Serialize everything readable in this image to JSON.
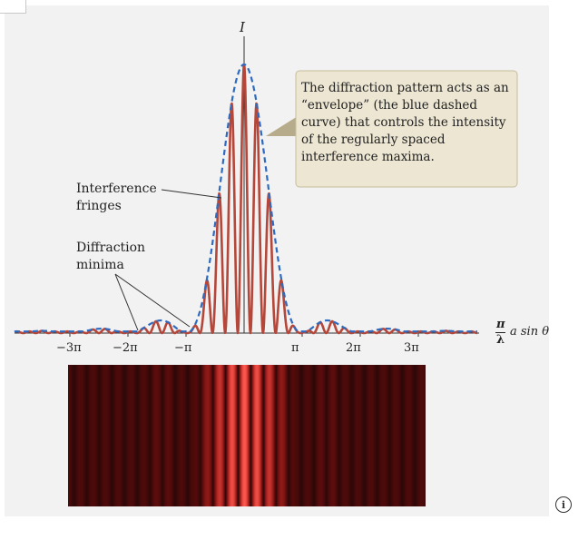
{
  "figure": {
    "intensity_axis_label": "I",
    "x_axis_label": {
      "frac_top": "π",
      "frac_bottom": "λ",
      "rest": "a sin θ"
    },
    "x_ticks": [
      "−3π",
      "−2π",
      "−π",
      "π",
      "2π",
      "3π"
    ],
    "x_tick_values": [
      -3,
      -2,
      -1,
      1,
      2,
      3
    ],
    "annotations": {
      "interference": [
        "Interference",
        "fringes"
      ],
      "diffraction": [
        "Diffraction",
        "minima"
      ],
      "callout": "The diffraction pattern acts as an “envelope” (the blue dashed curve) that controls the intensity of the regularly spaced interference maxima."
    },
    "colors": {
      "envelope": "#2e6bc0",
      "fringes": "#b5473a",
      "callout_fill": "#ece6d2",
      "callout_border": "#c8bd9b"
    }
  },
  "info_button": {
    "icon": "info-icon",
    "glyph": "i"
  }
}
